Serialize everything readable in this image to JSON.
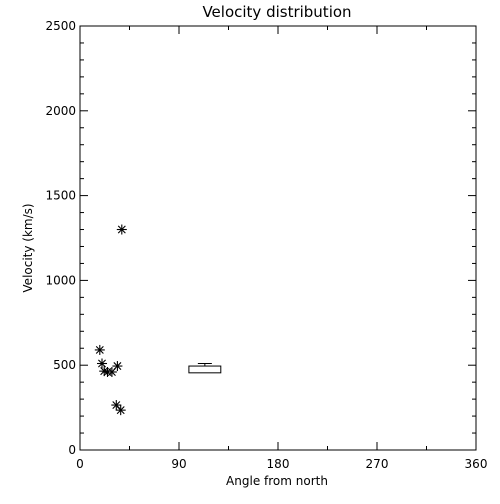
{
  "chart_data": {
    "type": "scatter",
    "title": "Velocity distribution",
    "xlabel": "Angle from north",
    "ylabel": "Velocity (km/s)",
    "xlim": [
      0,
      360
    ],
    "ylim": [
      0,
      2500
    ],
    "xticks": [
      0,
      90,
      180,
      270,
      360
    ],
    "yticks": [
      0,
      500,
      1000,
      1500,
      2000,
      2500
    ],
    "grid": false,
    "marker": "asterisk",
    "points": [
      {
        "x": 38,
        "y": 1300
      },
      {
        "x": 18,
        "y": 590
      },
      {
        "x": 20,
        "y": 510
      },
      {
        "x": 22,
        "y": 465
      },
      {
        "x": 25,
        "y": 460
      },
      {
        "x": 29,
        "y": 460
      },
      {
        "x": 34,
        "y": 495
      },
      {
        "x": 33,
        "y": 265
      },
      {
        "x": 37,
        "y": 235
      }
    ],
    "box": {
      "x_min": 99,
      "x_max": 128,
      "y_low": 455,
      "y_high": 495,
      "whisker_low": 455,
      "whisker_high": 510
    },
    "colors": {
      "axis": "#000000",
      "marker": "#000000",
      "background": "#ffffff"
    }
  }
}
